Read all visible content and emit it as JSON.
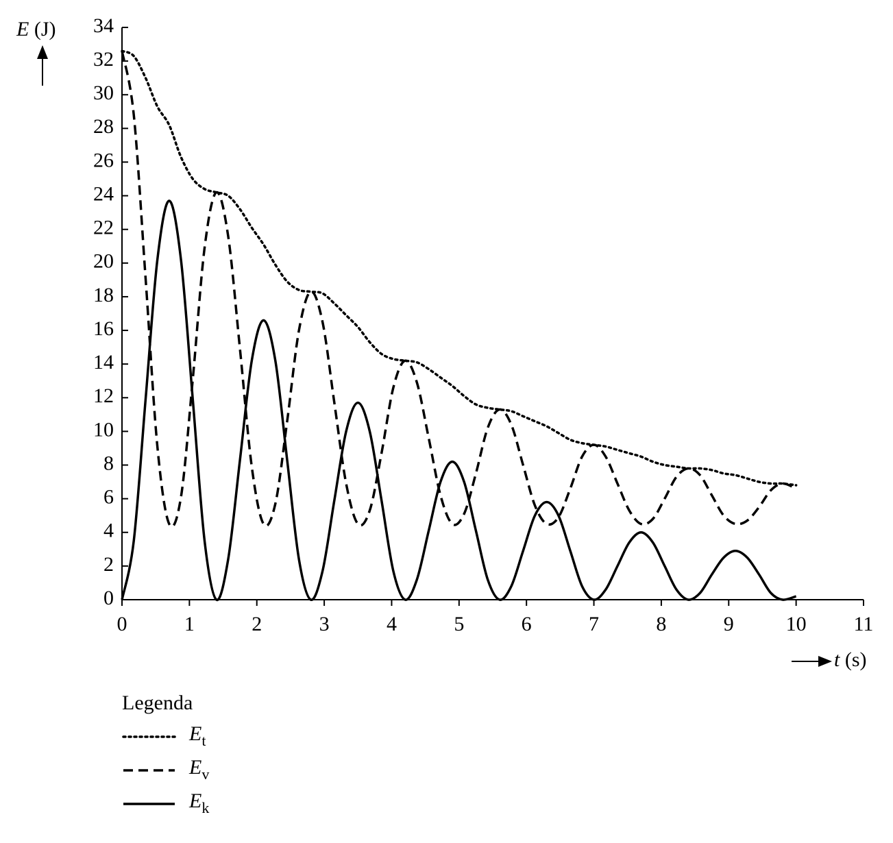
{
  "chart_data": {
    "type": "line",
    "y_label": "E (J)",
    "x_label": "t (s)",
    "legend_title": "Legenda",
    "x": [
      0,
      0.175,
      0.35,
      0.525,
      0.7,
      0.875,
      1.05,
      1.225,
      1.4,
      1.575,
      1.75,
      1.925,
      2.1,
      2.275,
      2.45,
      2.625,
      2.8,
      2.975,
      3.15,
      3.325,
      3.5,
      3.675,
      3.85,
      4.025,
      4.2,
      4.375,
      4.55,
      4.725,
      4.9,
      5.075,
      5.25,
      5.425,
      5.6,
      5.775,
      5.95,
      6.125,
      6.3,
      6.475,
      6.65,
      6.825,
      7.0,
      7.175,
      7.35,
      7.525,
      7.7,
      7.875,
      8.05,
      8.225,
      8.4,
      8.575,
      8.75,
      8.925,
      9.1,
      9.275,
      9.45,
      9.625,
      9.8,
      10
    ],
    "series": [
      {
        "name": "Et",
        "color": "#000000",
        "linestyle": "dotted",
        "values": [
          32.6,
          32.3,
          31.0,
          29.3,
          28.2,
          26.3,
          25.0,
          24.4,
          24.2,
          24.0,
          23.2,
          22.1,
          21.1,
          19.9,
          18.9,
          18.4,
          18.3,
          18.2,
          17.6,
          16.9,
          16.2,
          15.3,
          14.6,
          14.3,
          14.2,
          14.1,
          13.7,
          13.2,
          12.7,
          12.1,
          11.6,
          11.4,
          11.3,
          11.2,
          10.9,
          10.6,
          10.3,
          9.9,
          9.5,
          9.3,
          9.2,
          9.1,
          8.9,
          8.7,
          8.5,
          8.2,
          8.0,
          7.9,
          7.8,
          7.8,
          7.7,
          7.5,
          7.4,
          7.2,
          7.0,
          6.9,
          6.9,
          6.8
        ]
      },
      {
        "name": "Ev",
        "color": "#000000",
        "linestyle": "dashed",
        "values": [
          32.6,
          28.8,
          19.1,
          9.1,
          4.5,
          6.1,
          13.1,
          20.9,
          24.2,
          21.6,
          14.9,
          7.9,
          4.5,
          5.7,
          10.6,
          16.0,
          18.3,
          16.5,
          11.7,
          6.9,
          4.5,
          5.3,
          8.7,
          12.6,
          14.2,
          12.9,
          9.6,
          6.2,
          4.5,
          5.1,
          7.5,
          10.2,
          11.3,
          10.4,
          8.0,
          5.6,
          4.5,
          4.9,
          6.6,
          8.5,
          9.2,
          8.5,
          6.9,
          5.3,
          4.5,
          4.8,
          6.0,
          7.3,
          7.8,
          7.4,
          6.2,
          5.0,
          4.5,
          4.7,
          5.5,
          6.5,
          6.9,
          6.6
        ]
      },
      {
        "name": "Ek",
        "color": "#000000",
        "linestyle": "solid",
        "values": [
          0,
          3.5,
          11.9,
          20.2,
          23.7,
          20.2,
          11.9,
          3.5,
          0,
          2.4,
          8.3,
          14.2,
          16.6,
          14.2,
          8.3,
          2.4,
          0,
          1.7,
          5.9,
          10.0,
          11.7,
          10.0,
          5.9,
          1.7,
          0,
          1.2,
          4.1,
          7.0,
          8.2,
          7.0,
          4.1,
          1.2,
          0,
          0.8,
          2.9,
          5.0,
          5.8,
          5.0,
          2.9,
          0.8,
          0,
          0.6,
          2.0,
          3.4,
          4.0,
          3.4,
          2.0,
          0.6,
          0,
          0.4,
          1.5,
          2.5,
          2.9,
          2.5,
          1.5,
          0.4,
          0,
          0.2
        ]
      }
    ],
    "xlim": [
      0,
      11
    ],
    "xticks": [
      0,
      1,
      2,
      3,
      4,
      5,
      6,
      7,
      8,
      9,
      10,
      11
    ],
    "ylim": [
      0,
      34
    ],
    "yticks": [
      0,
      2,
      4,
      6,
      8,
      10,
      12,
      14,
      16,
      18,
      20,
      22,
      24,
      26,
      28,
      30,
      32,
      34
    ],
    "grid": false
  }
}
